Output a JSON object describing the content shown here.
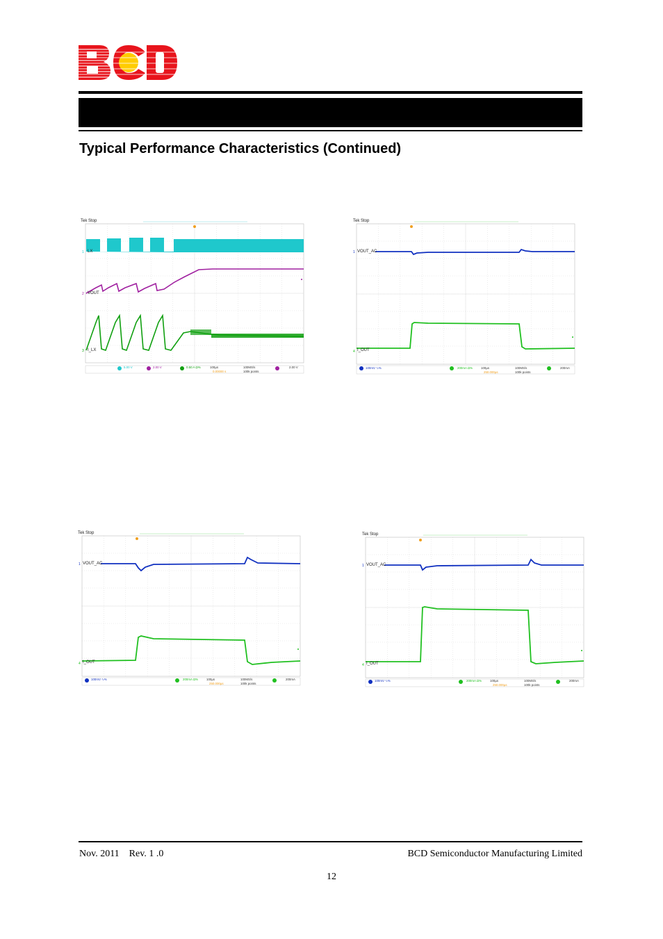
{
  "header": {
    "logo_text": "BCD",
    "colors": {
      "logo_red": "#e8141c",
      "logo_yellow": "#ffcc00",
      "bar": "#000000"
    }
  },
  "section_title": "Typical Performance Characteristics (Continued)",
  "scopes": [
    {
      "tek_label": "Tek Stop",
      "channels": [
        {
          "label": "LX",
          "color": "#1fc8cc"
        },
        {
          "label": "VOUT",
          "color": "#a020a0"
        },
        {
          "label": "I_LX",
          "color": "#10a010"
        }
      ],
      "status": {
        "ch1": "5.00 V",
        "ch2": "2.00 V",
        "ch3": "0.50 A Ω%",
        "timebase": "100µs",
        "position": "0.00000 s",
        "rate": "100MS/s",
        "points": "100k points",
        "trigger": "2.00 V"
      }
    },
    {
      "tek_label": "Tek Stop",
      "channels": [
        {
          "label": "VOUT_AC",
          "color": "#1030c0"
        },
        {
          "label": "I_OUT",
          "color": "#20c020"
        }
      ],
      "status": {
        "ch1": "100mV ∿%",
        "ch2": "200mA Ω%",
        "timebase": "100µs",
        "position": "250.000µs",
        "rate": "100MS/s",
        "points": "100k points",
        "trigger": "200mA"
      }
    },
    {
      "tek_label": "Tek Stop",
      "channels": [
        {
          "label": "VOUT_AC",
          "color": "#1030c0"
        },
        {
          "label": "I_OUT",
          "color": "#20c020"
        }
      ],
      "status": {
        "ch1": "100mV ∿%",
        "ch2": "200mA Ω%",
        "timebase": "100µs",
        "position": "250.000µs",
        "rate": "100MS/s",
        "points": "100k points",
        "trigger": "200mA"
      }
    },
    {
      "tek_label": "Tek Stop",
      "channels": [
        {
          "label": "VOUT_AC",
          "color": "#1030c0"
        },
        {
          "label": "I_OUT",
          "color": "#20c020"
        }
      ],
      "status": {
        "ch1": "100mV ∿%",
        "ch2": "200mA Ω%",
        "timebase": "100µs",
        "position": "250.000µs",
        "rate": "100MS/s",
        "points": "100k points",
        "trigger": "200mA"
      }
    }
  ],
  "footer": {
    "left": "Nov. 2011    Rev. 1 .0",
    "right": "BCD Semiconductor Manufacturing Limited",
    "page_number": "12"
  }
}
